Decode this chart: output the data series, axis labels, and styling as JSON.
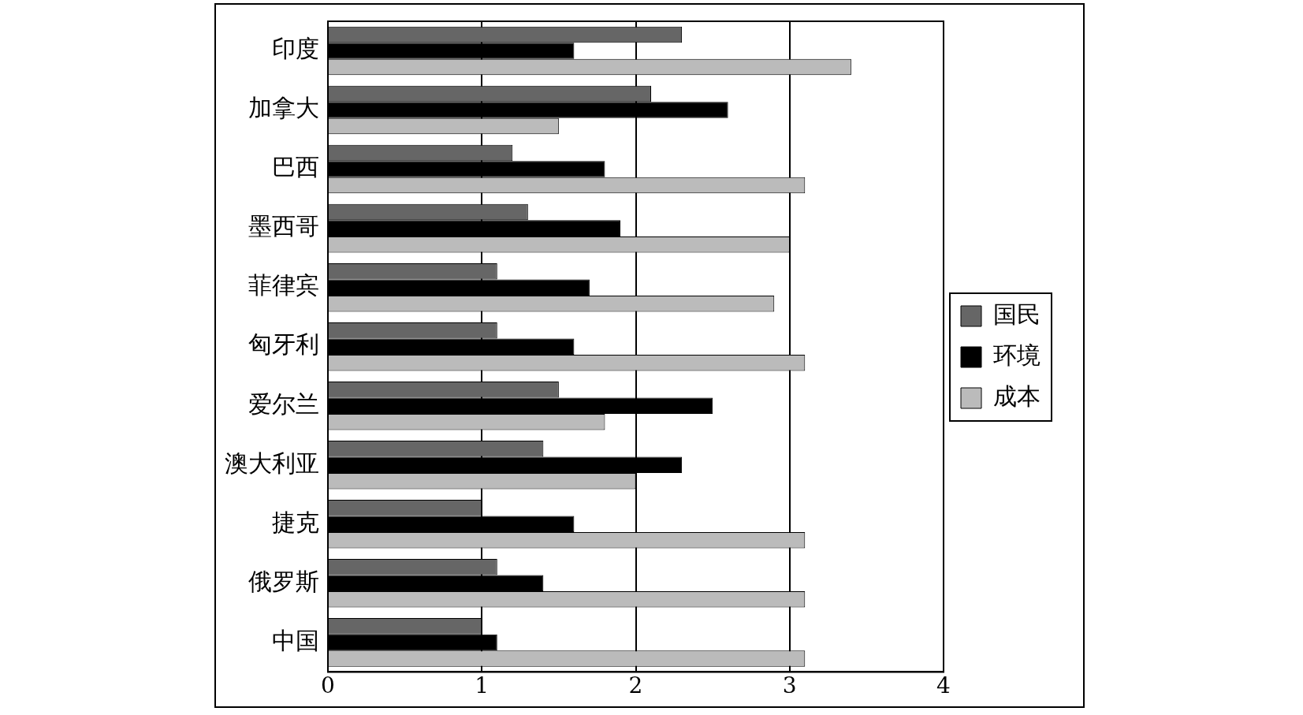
{
  "chart_data": {
    "type": "bar",
    "orientation": "horizontal",
    "categories": [
      "印度",
      "加拿大",
      "巴西",
      "墨西哥",
      "菲律宾",
      "匈牙利",
      "爱尔兰",
      "澳大利亚",
      "捷克",
      "俄罗斯",
      "中国"
    ],
    "series": [
      {
        "name": "国民",
        "color": "#666666",
        "values": [
          2.3,
          2.1,
          1.2,
          1.3,
          1.1,
          1.1,
          1.5,
          1.4,
          1.0,
          1.1,
          1.0
        ]
      },
      {
        "name": "环境",
        "color": "#000000",
        "values": [
          1.6,
          2.6,
          1.8,
          1.9,
          1.7,
          1.6,
          2.5,
          2.3,
          1.6,
          1.4,
          1.1
        ]
      },
      {
        "name": "成本",
        "color": "#bbbbbb",
        "values": [
          3.4,
          1.5,
          3.1,
          3.0,
          2.9,
          3.1,
          1.8,
          2.0,
          3.1,
          3.1,
          3.1
        ]
      }
    ],
    "xlim": [
      0,
      4
    ],
    "xticks": [
      0,
      1,
      2,
      3,
      4
    ],
    "grid": "x",
    "legend": "right"
  }
}
